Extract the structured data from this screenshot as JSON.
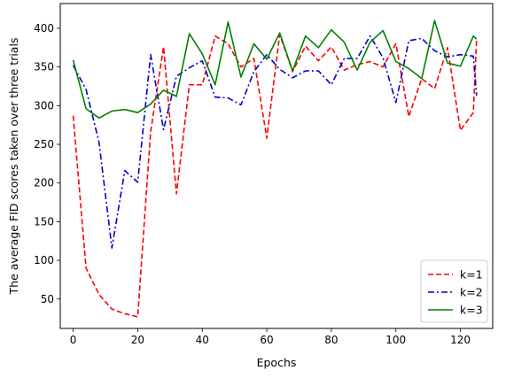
{
  "chart_data": {
    "type": "line",
    "xlabel": "Epochs",
    "ylabel": "The average FID scores taken over three trials",
    "xlim": [
      -4,
      130
    ],
    "ylim": [
      12,
      432
    ],
    "xticks": [
      0,
      20,
      40,
      60,
      80,
      100,
      120
    ],
    "yticks": [
      50,
      100,
      150,
      200,
      250,
      300,
      350,
      400
    ],
    "grid": false,
    "legend_position": "lower-right",
    "x": [
      0,
      4,
      8,
      12,
      16,
      20,
      24,
      28,
      32,
      36,
      40,
      44,
      48,
      52,
      56,
      60,
      64,
      68,
      72,
      76,
      80,
      84,
      88,
      92,
      96,
      100,
      104,
      108,
      112,
      116,
      120,
      124,
      125
    ],
    "series": [
      {
        "name": "k=1",
        "color": "#ff0000",
        "dash": "dashed",
        "values": [
          287,
          90,
          56,
          37,
          31,
          27,
          266,
          376,
          186,
          327,
          327,
          390,
          380,
          350,
          361,
          258,
          392,
          344,
          377,
          358,
          376,
          346,
          353,
          357,
          350,
          380,
          286,
          335,
          322,
          375,
          268,
          291,
          385
        ]
      },
      {
        "name": "k=2",
        "color": "#0000cc",
        "dash": "dashdot",
        "values": [
          352,
          321,
          253,
          116,
          216,
          201,
          366,
          269,
          338,
          349,
          358,
          311,
          310,
          301,
          344,
          366,
          347,
          336,
          345,
          345,
          327,
          361,
          361,
          390,
          362,
          304,
          384,
          387,
          371,
          363,
          366,
          364,
          313
        ]
      },
      {
        "name": "k=3",
        "color": "#008000",
        "dash": "solid",
        "values": [
          359,
          296,
          284,
          293,
          295,
          291,
          302,
          320,
          312,
          393,
          367,
          327,
          408,
          337,
          380,
          360,
          394,
          345,
          390,
          375,
          398,
          382,
          346,
          382,
          397,
          357,
          348,
          335,
          410,
          355,
          351,
          390,
          386
        ]
      }
    ]
  }
}
